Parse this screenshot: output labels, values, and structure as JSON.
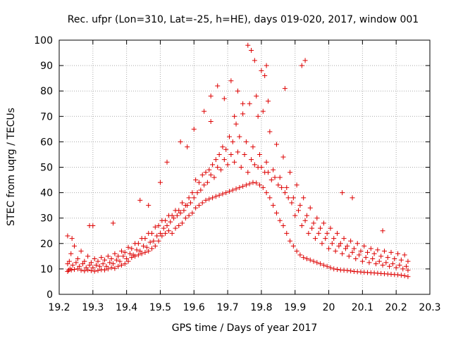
{
  "chart_data": {
    "type": "scatter",
    "title": "Rec. ufpr (Lon=310, Lat=-25, h=HE), days 019-020, 2017, window 001",
    "xlabel": "GPS time / Days of year 2017",
    "ylabel": "STEC from uqrg / TECUs",
    "xlim": [
      19.2,
      20.3
    ],
    "ylim": [
      0,
      100
    ],
    "xticks": [
      "19.2",
      "19.3",
      "19.4",
      "19.5",
      "19.6",
      "19.7",
      "19.8",
      "19.9",
      "20",
      "20.1",
      "20.2",
      "20.3"
    ],
    "yticks": [
      "0",
      "10",
      "20",
      "30",
      "40",
      "50",
      "60",
      "70",
      "80",
      "90",
      "100"
    ],
    "grid": true,
    "marker": "plus",
    "point_color": "#dd0000",
    "series": [
      {
        "x": [
          19.225,
          19.228,
          19.232,
          19.236,
          19.245,
          19.255,
          19.265,
          19.275,
          19.285,
          19.295,
          19.305,
          19.315,
          19.325,
          19.335,
          19.345,
          19.355,
          19.365,
          19.375,
          19.385,
          19.395,
          19.405,
          19.415,
          19.425,
          19.435,
          19.445,
          19.455,
          19.465,
          19.475,
          19.485,
          19.495,
          19.505,
          19.515,
          19.525,
          19.535,
          19.545,
          19.555,
          19.565,
          19.575,
          19.585,
          19.595,
          19.605,
          19.615,
          19.625,
          19.635,
          19.645,
          19.655,
          19.665,
          19.675,
          19.685,
          19.695,
          19.705,
          19.715,
          19.725,
          19.735,
          19.745,
          19.755,
          19.765,
          19.775,
          19.785,
          19.795,
          19.805,
          19.815,
          19.825,
          19.835,
          19.845,
          19.855,
          19.865,
          19.875,
          19.885,
          19.895,
          19.905,
          19.915,
          19.925,
          19.935,
          19.945,
          19.955,
          19.965,
          19.975,
          19.985,
          19.995,
          20.005,
          20.015,
          20.025,
          20.035,
          20.045,
          20.055,
          20.065,
          20.075,
          20.085,
          20.095,
          20.105,
          20.115,
          20.125,
          20.135,
          20.145,
          20.155,
          20.165,
          20.175,
          20.185,
          20.195,
          20.205,
          20.215,
          20.225,
          20.235,
          19.225,
          19.24,
          19.26,
          19.28,
          19.3,
          19.32,
          19.34,
          19.36,
          19.38,
          19.4,
          19.42,
          19.44,
          19.46,
          19.48,
          19.5,
          19.52,
          19.54,
          19.56,
          19.58,
          19.6,
          19.62,
          19.64,
          19.66,
          19.68,
          19.7,
          19.72,
          19.74,
          19.76,
          19.78,
          19.8,
          19.82,
          19.84,
          19.86,
          19.88,
          19.9,
          19.92,
          19.94,
          19.96,
          19.98,
          20.0,
          20.02,
          20.04,
          20.06,
          20.08,
          20.1,
          20.12,
          20.14,
          20.16,
          20.18,
          20.2,
          20.22,
          20.235,
          19.23,
          19.25,
          19.27,
          19.29,
          19.31,
          19.33,
          19.35,
          19.37,
          19.39,
          19.41,
          19.43,
          19.45,
          19.47,
          19.49,
          19.51,
          19.53,
          19.55,
          19.57,
          19.59,
          19.61,
          19.63,
          19.65,
          19.67,
          19.69,
          19.71,
          19.73,
          19.75,
          19.77,
          19.79,
          19.81,
          19.83,
          19.85,
          19.87,
          19.89,
          19.91,
          19.93,
          19.95,
          19.97,
          19.99,
          20.01,
          20.03,
          20.05,
          20.07,
          20.09,
          20.11,
          20.13,
          20.15,
          20.17,
          20.19,
          20.21,
          20.23,
          19.235,
          19.255,
          19.275,
          19.295,
          19.315,
          19.335,
          19.355,
          19.375,
          19.395,
          19.415,
          19.435,
          19.455,
          19.475,
          19.495,
          19.515,
          19.535,
          19.555,
          19.575,
          19.595,
          19.615,
          19.635,
          19.655,
          19.675,
          19.695,
          19.715,
          19.735,
          19.755,
          19.775,
          19.795,
          19.815,
          19.835,
          19.855,
          19.875,
          19.895,
          19.915,
          19.935,
          19.955,
          19.975,
          19.995,
          20.015,
          20.035,
          20.055,
          20.075,
          20.095,
          20.115,
          20.135,
          20.155,
          20.175,
          20.195,
          20.215,
          20.235,
          19.245,
          19.265,
          19.285,
          19.305,
          19.325,
          19.345,
          19.365,
          19.385,
          19.405,
          19.425,
          19.445,
          19.465,
          19.485,
          19.505,
          19.525,
          19.545,
          19.565,
          19.585,
          19.605,
          19.625,
          19.645,
          19.665,
          19.685,
          19.705,
          19.725,
          19.745,
          19.765,
          19.785,
          19.805,
          19.825,
          19.845,
          19.865,
          19.885,
          19.905,
          19.925,
          19.945,
          19.965,
          19.985,
          20.005,
          20.025,
          20.045,
          20.065,
          20.085,
          20.105,
          20.125,
          20.145,
          20.165,
          20.185,
          20.205,
          20.225,
          19.225,
          19.29,
          19.36,
          19.52,
          19.6,
          19.63,
          19.65,
          19.67,
          19.69,
          19.71,
          19.73,
          19.76,
          19.77,
          19.78,
          19.8,
          19.81,
          19.815,
          19.87,
          19.92,
          19.93,
          20.04,
          20.07,
          20.16,
          19.72,
          19.745,
          19.79,
          19.82,
          19.65,
          19.58,
          19.56,
          19.5,
          19.465,
          19.44,
          19.3,
          19.238
        ],
        "y": [
          9,
          9.5,
          10,
          9.6,
          9.8,
          10,
          9.5,
          9.2,
          9.6,
          9.3,
          9.1,
          9.4,
          9.7,
          9.6,
          10,
          10.5,
          10.2,
          11,
          11.5,
          12,
          13,
          14.5,
          15,
          15.5,
          16,
          16.5,
          17,
          18,
          19,
          21,
          23,
          24,
          25,
          24,
          26,
          27,
          28,
          30,
          31,
          32,
          34,
          35,
          36,
          37,
          37.5,
          38,
          38.5,
          39,
          39.5,
          40,
          40.5,
          41,
          41.5,
          42,
          42.5,
          43,
          43.5,
          44,
          43.8,
          43,
          42,
          40,
          38,
          35,
          32,
          29,
          27,
          24,
          21,
          19,
          17,
          15.5,
          14.5,
          14,
          13.5,
          13,
          12.5,
          12,
          11.5,
          11,
          10.5,
          10,
          9.8,
          9.6,
          9.5,
          9.4,
          9.2,
          9,
          8.9,
          8.8,
          8.7,
          8.6,
          8.5,
          8.4,
          8.3,
          8.2,
          8.1,
          8,
          7.9,
          7.8,
          7.7,
          7.5,
          7.3,
          7,
          12,
          11.5,
          11,
          10.5,
          10.5,
          11,
          11,
          12,
          13,
          14,
          15.5,
          17,
          18.5,
          21,
          24,
          27,
          30,
          32,
          35,
          38,
          41,
          44,
          46,
          49,
          51,
          52,
          50,
          48,
          51,
          50,
          48,
          46,
          42,
          38,
          31,
          27,
          24,
          22,
          20,
          18,
          17,
          16,
          15,
          14,
          13,
          12.5,
          12,
          11.5,
          11,
          10.5,
          10,
          9.5,
          13,
          12.5,
          12,
          11.5,
          11.5,
          12,
          12.5,
          13.5,
          15,
          16,
          17.5,
          19,
          20.5,
          23,
          26,
          28.5,
          31,
          33,
          36,
          40,
          43,
          47,
          50,
          53,
          55,
          56,
          55,
          53,
          50,
          48,
          45,
          43,
          40,
          36,
          33,
          29,
          26,
          24,
          22,
          20,
          19,
          18,
          16.5,
          15.5,
          14.5,
          14,
          13,
          12.5,
          12,
          11.5,
          11,
          16,
          14,
          13,
          12.5,
          13,
          13.5,
          14,
          15,
          16.5,
          18,
          20,
          22,
          24,
          27,
          29,
          31,
          33,
          35,
          40,
          44,
          48,
          51,
          55,
          57,
          60,
          62,
          60,
          58,
          55,
          52,
          49,
          46,
          42,
          38,
          35,
          31,
          28,
          26,
          24,
          22,
          20,
          19,
          18,
          17,
          16.5,
          16,
          15,
          14.5,
          14,
          13.5,
          13,
          19,
          17,
          15,
          14,
          14.5,
          15,
          16,
          17,
          18.5,
          20,
          22,
          24,
          26.5,
          29,
          31,
          33,
          36,
          38,
          45,
          47,
          49,
          53,
          58,
          62,
          67,
          71,
          75,
          78,
          72,
          64,
          59,
          54,
          48,
          43,
          38,
          34,
          30,
          28,
          26,
          24,
          22,
          21,
          20,
          19,
          18,
          17.5,
          17,
          16.5,
          16,
          15.5,
          23,
          27,
          28,
          52,
          65,
          72,
          78,
          82,
          77,
          84,
          80,
          98,
          96,
          92,
          88,
          86,
          90,
          81,
          90,
          92,
          40,
          38,
          25,
          70,
          75,
          70,
          76,
          68,
          58,
          60,
          44,
          35,
          37,
          27,
          22
        ]
      }
    ]
  }
}
